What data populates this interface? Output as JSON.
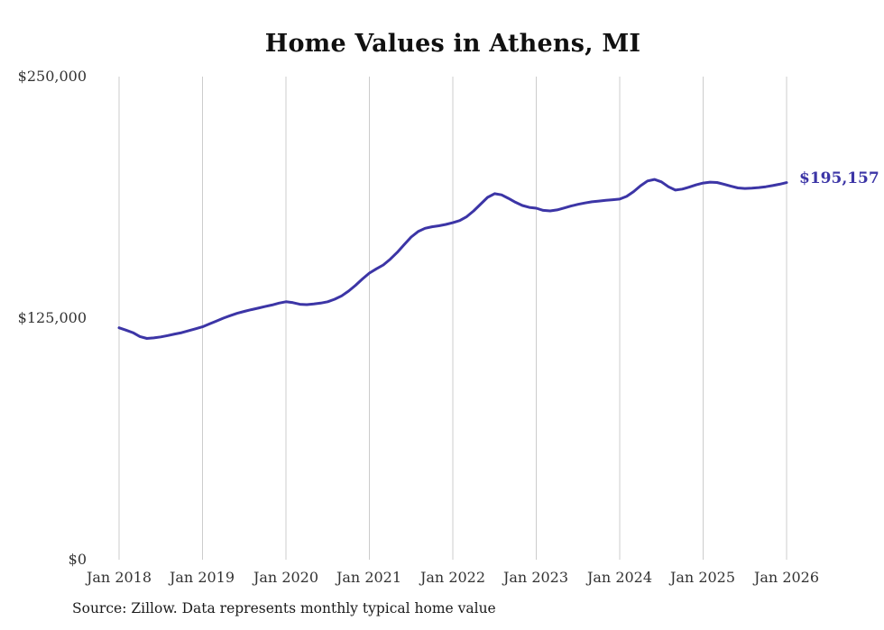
{
  "title": "Home Values in Athens, MI",
  "source_note": "Source: Zillow. Data represents monthly typical home value",
  "end_label": "$195,157",
  "colors": {
    "line": "#3c35a6",
    "grid": "#cccccc",
    "title_text": "#111111",
    "axis_text": "#333333"
  },
  "chart_data": {
    "type": "line",
    "title": "Home Values in Athens, MI",
    "xlabel": "",
    "ylabel": "",
    "ylim": [
      0,
      250000
    ],
    "y_tick_labels": [
      "$0",
      "$125,000",
      "$250,000"
    ],
    "x_tick_labels": [
      "Jan 2018",
      "Jan 2019",
      "Jan 2020",
      "Jan 2021",
      "Jan 2022",
      "Jan 2023",
      "Jan 2024",
      "Jan 2025",
      "Jan 2026"
    ],
    "x_start": "2018-01",
    "x_end": "2026-01",
    "x_frequency": "monthly",
    "grid": "vertical-only",
    "legend": "none",
    "end_value": 195157,
    "series": [
      {
        "name": "Typical home value",
        "values": [
          120000,
          118800,
          117500,
          115500,
          114500,
          114800,
          115300,
          116000,
          116800,
          117500,
          118500,
          119500,
          120500,
          122000,
          123500,
          125000,
          126300,
          127500,
          128500,
          129400,
          130200,
          131000,
          131800,
          132800,
          133500,
          133000,
          132200,
          132000,
          132300,
          132800,
          133500,
          134800,
          136500,
          139000,
          142000,
          145300,
          148300,
          150500,
          152500,
          155500,
          159000,
          163000,
          167000,
          169800,
          171500,
          172300,
          172800,
          173500,
          174400,
          175500,
          177500,
          180500,
          184000,
          187500,
          189400,
          188800,
          187000,
          185000,
          183300,
          182300,
          181900,
          180800,
          180500,
          181000,
          182000,
          183000,
          183900,
          184600,
          185200,
          185600,
          186000,
          186300,
          186600,
          188000,
          190500,
          193500,
          196000,
          196800,
          195500,
          193000,
          191300,
          191800,
          192800,
          194000,
          194900,
          195400,
          195200,
          194300,
          193300,
          192400,
          192100,
          192300,
          192600,
          193000,
          193600,
          194300,
          195157
        ]
      }
    ]
  }
}
